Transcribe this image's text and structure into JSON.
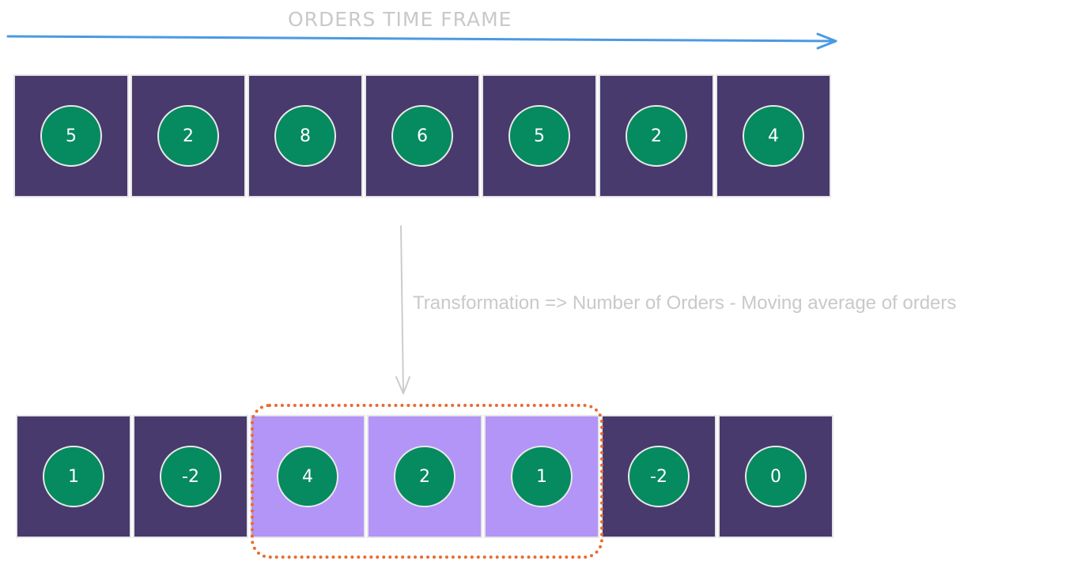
{
  "header": {
    "title": "ORDERS TIME FRAME",
    "arrow_color": "#4a9ae2"
  },
  "orders_row": {
    "values": [
      "5",
      "2",
      "8",
      "6",
      "5",
      "2",
      "4"
    ]
  },
  "transformation": {
    "label": "Transformation => Number of Orders - Moving average of orders"
  },
  "result_row": {
    "values": [
      "1",
      "-2",
      "4",
      "2",
      "1",
      "-2",
      "0"
    ],
    "highlighted_indices": [
      2,
      3,
      4
    ]
  },
  "colors": {
    "cell_dark": "#483a6d",
    "cell_highlight": "#b394f7",
    "circle": "#068a5f",
    "window_border": "#ea6a2e",
    "label_gray": "#c9c9c9"
  }
}
